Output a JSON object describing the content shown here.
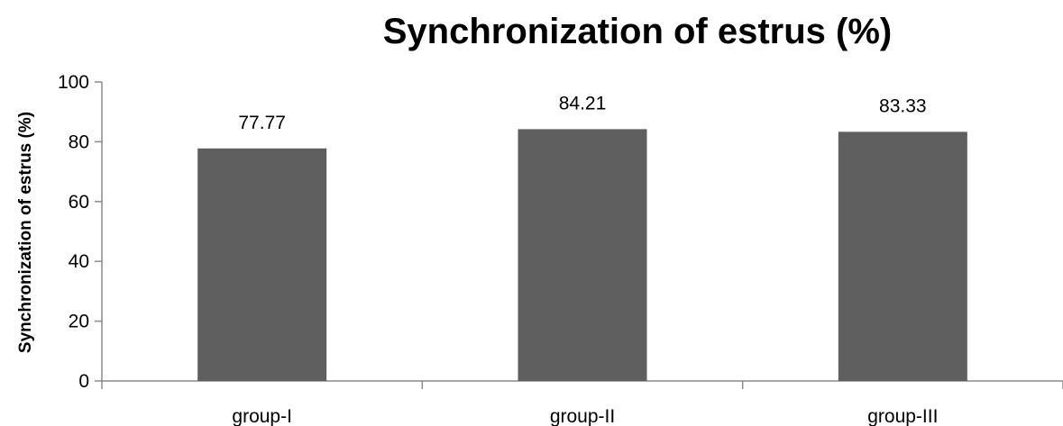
{
  "chart_data": {
    "type": "bar",
    "title": "Synchronization of estrus (%)",
    "xlabel": "",
    "ylabel": "Synchronization of estrus (%)",
    "categories": [
      "group-I",
      "group-II",
      "group-III"
    ],
    "values": [
      77.77,
      84.21,
      83.33
    ],
    "data_labels": [
      "77.77",
      "84.21",
      "83.33"
    ],
    "ylim": [
      0,
      100
    ],
    "yticks": [
      0,
      20,
      40,
      60,
      80,
      100
    ],
    "grid": false,
    "legend": "none",
    "bar_color": "#5f5f5f"
  }
}
